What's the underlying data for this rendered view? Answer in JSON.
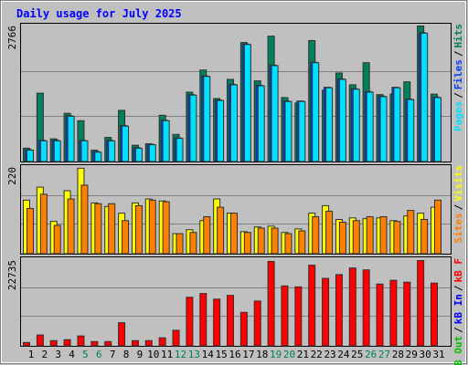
{
  "chart_data": [
    {
      "type": "bar",
      "title": "Daily usage for July 2025",
      "categories": [
        "1",
        "2",
        "3",
        "4",
        "5",
        "6",
        "7",
        "8",
        "9",
        "10",
        "11",
        "12",
        "13",
        "14",
        "15",
        "16",
        "17",
        "18",
        "19",
        "20",
        "21",
        "22",
        "23",
        "24",
        "25",
        "26",
        "27",
        "28",
        "29",
        "30",
        "31"
      ],
      "category_colors": [
        "#000000",
        "#000000",
        "#000000",
        "#000000",
        "#00805c",
        "#00805c",
        "#000000",
        "#000000",
        "#000000",
        "#000000",
        "#000000",
        "#00805c",
        "#00805c",
        "#000000",
        "#000000",
        "#000000",
        "#000000",
        "#000000",
        "#00805c",
        "#00805c",
        "#000000",
        "#000000",
        "#000000",
        "#000000",
        "#000000",
        "#00805c",
        "#00805c",
        "#000000",
        "#000000",
        "#000000",
        "#000000"
      ],
      "legend_separator": "/",
      "ylim": [
        0,
        2766
      ],
      "yticks": [
        2766
      ],
      "series": [
        {
          "name": "Hits",
          "color": "#00805c",
          "values": [
            280,
            1400,
            470,
            990,
            840,
            240,
            500,
            1050,
            340,
            370,
            950,
            560,
            1420,
            1870,
            1290,
            1680,
            2430,
            1650,
            2560,
            1310,
            1200,
            2470,
            1460,
            1810,
            1570,
            2020,
            1370,
            1380,
            1630,
            2766,
            1380
          ]
        },
        {
          "name": "Files",
          "color": "#0040ff",
          "values": [
            250,
            440,
            440,
            940,
            440,
            210,
            440,
            740,
            290,
            360,
            850,
            490,
            1370,
            1750,
            1260,
            1580,
            2400,
            1560,
            1970,
            1240,
            1240,
            2030,
            1520,
            1690,
            1490,
            1430,
            1340,
            1520,
            1280,
            2630,
            1320
          ]
        },
        {
          "name": "Pages",
          "color": "#00e0ff",
          "values": [
            240,
            430,
            430,
            930,
            430,
            200,
            430,
            730,
            280,
            350,
            840,
            480,
            1360,
            1740,
            1250,
            1570,
            2390,
            1550,
            1960,
            1230,
            1230,
            2020,
            1510,
            1680,
            1480,
            1420,
            1330,
            1510,
            1270,
            2620,
            1310
          ]
        }
      ]
    },
    {
      "type": "bar",
      "ylim": [
        0,
        220
      ],
      "yticks": [
        220
      ],
      "series": [
        {
          "name": "Visits",
          "color": "#ffff00",
          "values": [
            137,
            170,
            83,
            161,
            218,
            130,
            121,
            104,
            130,
            140,
            135,
            52,
            62,
            85,
            140,
            104,
            57,
            69,
            71,
            55,
            64,
            104,
            123,
            88,
            92,
            90,
            92,
            85,
            97,
            104,
            119
          ]
        },
        {
          "name": "Sites",
          "color": "#ff8000",
          "values": [
            116,
            152,
            73,
            140,
            175,
            128,
            128,
            85,
            123,
            137,
            133,
            52,
            55,
            95,
            119,
            104,
            55,
            66,
            66,
            52,
            59,
            95,
            109,
            81,
            85,
            95,
            95,
            83,
            111,
            88,
            137
          ]
        }
      ]
    },
    {
      "type": "bar",
      "ylim": [
        0,
        22735
      ],
      "yticks": [
        22735
      ],
      "series": [
        {
          "name": "kB F",
          "color": "#ff0000",
          "values": [
            1000,
            3000,
            1500,
            1750,
            2750,
            1250,
            1250,
            6250,
            1500,
            1500,
            2250,
            4250,
            13000,
            14000,
            12500,
            13500,
            9000,
            12000,
            22500,
            16000,
            15750,
            21500,
            18000,
            19000,
            20750,
            20250,
            16500,
            17500,
            17000,
            22735,
            16750
          ]
        },
        {
          "name": "kB In",
          "color": "#0000ff",
          "values": [
            0,
            0,
            0,
            0,
            0,
            0,
            0,
            0,
            0,
            0,
            0,
            0,
            0,
            0,
            0,
            0,
            0,
            0,
            0,
            0,
            0,
            0,
            0,
            0,
            0,
            0,
            0,
            0,
            0,
            0,
            0
          ]
        },
        {
          "name": "kB Out",
          "color": "#00c000",
          "values": [
            0,
            0,
            0,
            0,
            0,
            0,
            0,
            0,
            0,
            0,
            0,
            0,
            0,
            0,
            0,
            0,
            0,
            0,
            0,
            0,
            0,
            0,
            0,
            0,
            0,
            0,
            0,
            0,
            0,
            0,
            0
          ]
        }
      ]
    }
  ]
}
